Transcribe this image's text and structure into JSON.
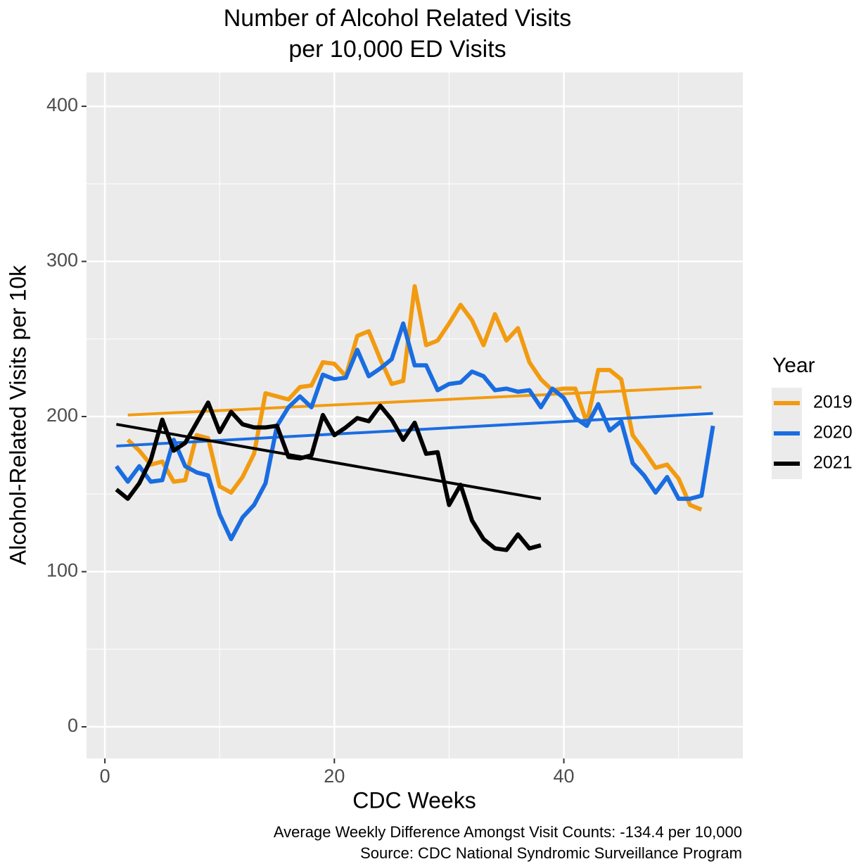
{
  "chart_data": {
    "type": "line",
    "title": [
      "Number of Alcohol Related Visits",
      "per 10,000 ED Visits"
    ],
    "xlabel": "CDC Weeks",
    "ylabel": "Alcohol-Related Visits per 10k",
    "caption": [
      "Average Weekly Difference Amongst Visit Counts: -134.4 per 10,000",
      "Source: CDC National Syndromic Surveillance Program"
    ],
    "legend_title": "Year",
    "legend_position": "right",
    "grid": true,
    "xlim": [
      -1.6,
      55.6
    ],
    "xticks": [
      0,
      20,
      40
    ],
    "xminorticks": [
      10,
      30,
      50
    ],
    "ylim": [
      -20.4,
      421.8
    ],
    "yticks": [
      0,
      100,
      200,
      300,
      400
    ],
    "yminorticks": [
      50,
      150,
      250,
      350
    ],
    "series": [
      {
        "name": "2019",
        "color": "#f29b11",
        "x": [
          2,
          3,
          4,
          5,
          6,
          7,
          8,
          9,
          10,
          11,
          12,
          13,
          14,
          15,
          16,
          17,
          18,
          19,
          20,
          21,
          22,
          23,
          24,
          25,
          26,
          27,
          28,
          29,
          30,
          31,
          32,
          33,
          34,
          35,
          36,
          37,
          38,
          39,
          40,
          41,
          42,
          43,
          44,
          45,
          46,
          47,
          48,
          49,
          50,
          51,
          52
        ],
        "values": [
          185,
          178,
          169,
          171,
          158,
          159,
          188,
          186,
          155,
          151,
          161,
          176,
          215,
          213,
          211,
          219,
          220,
          235,
          234,
          226,
          252,
          255,
          237,
          221,
          223,
          284,
          246,
          249,
          260,
          272,
          262,
          246,
          266,
          249,
          257,
          235,
          224,
          217,
          218,
          218,
          196,
          230,
          230,
          224,
          188,
          178,
          167,
          169,
          160,
          143,
          140
        ],
        "trend": {
          "x": [
            2,
            52
          ],
          "values": [
            201,
            219
          ]
        }
      },
      {
        "name": "2020",
        "color": "#1a6de0",
        "x": [
          1,
          2,
          3,
          4,
          5,
          6,
          7,
          8,
          9,
          10,
          11,
          12,
          13,
          14,
          15,
          16,
          17,
          18,
          19,
          20,
          21,
          22,
          23,
          24,
          25,
          26,
          27,
          28,
          29,
          30,
          31,
          32,
          33,
          34,
          35,
          36,
          37,
          38,
          39,
          40,
          41,
          42,
          43,
          44,
          45,
          46,
          47,
          48,
          49,
          50,
          51,
          52,
          53
        ],
        "values": [
          168,
          158,
          168,
          158,
          159,
          185,
          168,
          164,
          162,
          137,
          121,
          135,
          143,
          157,
          194,
          206,
          213,
          206,
          227,
          224,
          225,
          243,
          226,
          231,
          237,
          260,
          233,
          233,
          217,
          221,
          222,
          229,
          226,
          217,
          218,
          216,
          217,
          206,
          218,
          212,
          199,
          194,
          208,
          191,
          197,
          170,
          162,
          151,
          161,
          147,
          147,
          149,
          194
        ],
        "trend": {
          "x": [
            1,
            53
          ],
          "values": [
            181,
            202
          ]
        }
      },
      {
        "name": "2021",
        "color": "#000000",
        "x": [
          1,
          2,
          3,
          4,
          5,
          6,
          7,
          8,
          9,
          10,
          11,
          12,
          13,
          14,
          15,
          16,
          17,
          18,
          19,
          20,
          21,
          22,
          23,
          24,
          25,
          26,
          27,
          28,
          29,
          30,
          31,
          32,
          33,
          34,
          35,
          36,
          37,
          38
        ],
        "values": [
          153,
          147,
          157,
          172,
          198,
          178,
          183,
          196,
          209,
          190,
          203,
          195,
          193,
          193,
          194,
          174,
          173,
          175,
          201,
          188,
          193,
          199,
          197,
          207,
          198,
          185,
          196,
          176,
          177,
          143,
          156,
          133,
          121,
          115,
          114,
          124,
          115,
          117
        ],
        "trend": {
          "x": [
            1,
            38
          ],
          "values": [
            195,
            147
          ]
        }
      }
    ]
  }
}
